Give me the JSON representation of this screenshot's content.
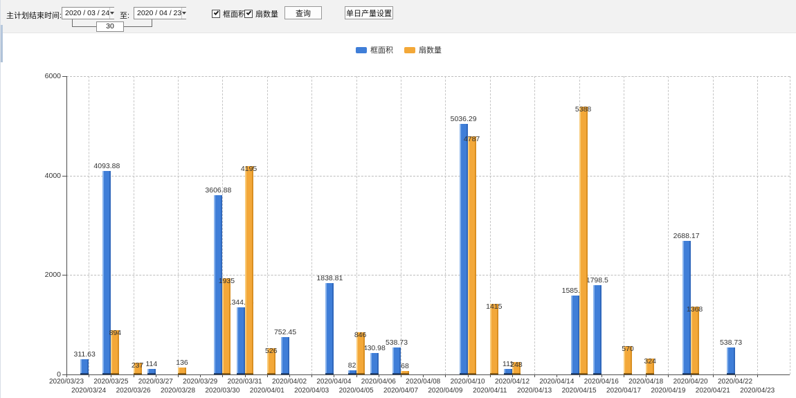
{
  "toolbar": {
    "plan_end_label": "主计划结束时间:",
    "date_from": "2020 / 03 / 24",
    "to_label": "至:",
    "date_to": "2020 / 04 / 23",
    "interval_days": "30",
    "checkboxes": [
      {
        "label": "框面积",
        "checked": true
      },
      {
        "label": "扇数量",
        "checked": true
      }
    ],
    "query_button": "查询",
    "daily_output_button": "单日产量设置"
  },
  "legend": [
    {
      "label": "框面积",
      "color": "#3f7ed8"
    },
    {
      "label": "扇数量",
      "color": "#f3a839"
    }
  ],
  "chart_data": {
    "type": "bar",
    "title": "",
    "xlabel": "",
    "ylabel": "",
    "ylim": [
      0,
      6000
    ],
    "yticks": [
      0,
      2000,
      4000,
      6000
    ],
    "grid": "dashed",
    "legend_position": "top-center",
    "categories": [
      "2020/03/23",
      "2020/03/24",
      "2020/03/25",
      "2020/03/26",
      "2020/03/27",
      "2020/03/28",
      "2020/03/29",
      "2020/03/30",
      "2020/03/31",
      "2020/04/01",
      "2020/04/02",
      "2020/04/03",
      "2020/04/04",
      "2020/04/05",
      "2020/04/06",
      "2020/04/07",
      "2020/04/08",
      "2020/04/09",
      "2020/04/10",
      "2020/04/11",
      "2020/04/12",
      "2020/04/13",
      "2020/04/14",
      "2020/04/15",
      "2020/04/16",
      "2020/04/17",
      "2020/04/18",
      "2020/04/19",
      "2020/04/20",
      "2020/04/21",
      "2020/04/22",
      "2020/04/23"
    ],
    "series": [
      {
        "name": "框面积",
        "key": "frame-area",
        "color": "#3f7ed8",
        "values": [
          null,
          311.63,
          4093.88,
          null,
          114,
          null,
          null,
          3606.88,
          1344.95,
          null,
          752.45,
          null,
          1838.81,
          82,
          430.98,
          538.73,
          null,
          null,
          5036.29,
          null,
          111,
          null,
          null,
          1585.96,
          1798.5,
          null,
          null,
          null,
          2688.17,
          null,
          538.73,
          null
        ]
      },
      {
        "name": "扇数量",
        "key": "fan-count",
        "color": "#f3a839",
        "values": [
          null,
          null,
          894,
          237,
          null,
          136,
          null,
          1935,
          4195,
          526,
          null,
          null,
          null,
          846,
          null,
          68,
          null,
          null,
          4787,
          1415,
          248,
          null,
          null,
          5388,
          null,
          570,
          324,
          null,
          1368,
          null,
          null,
          null
        ]
      }
    ]
  }
}
